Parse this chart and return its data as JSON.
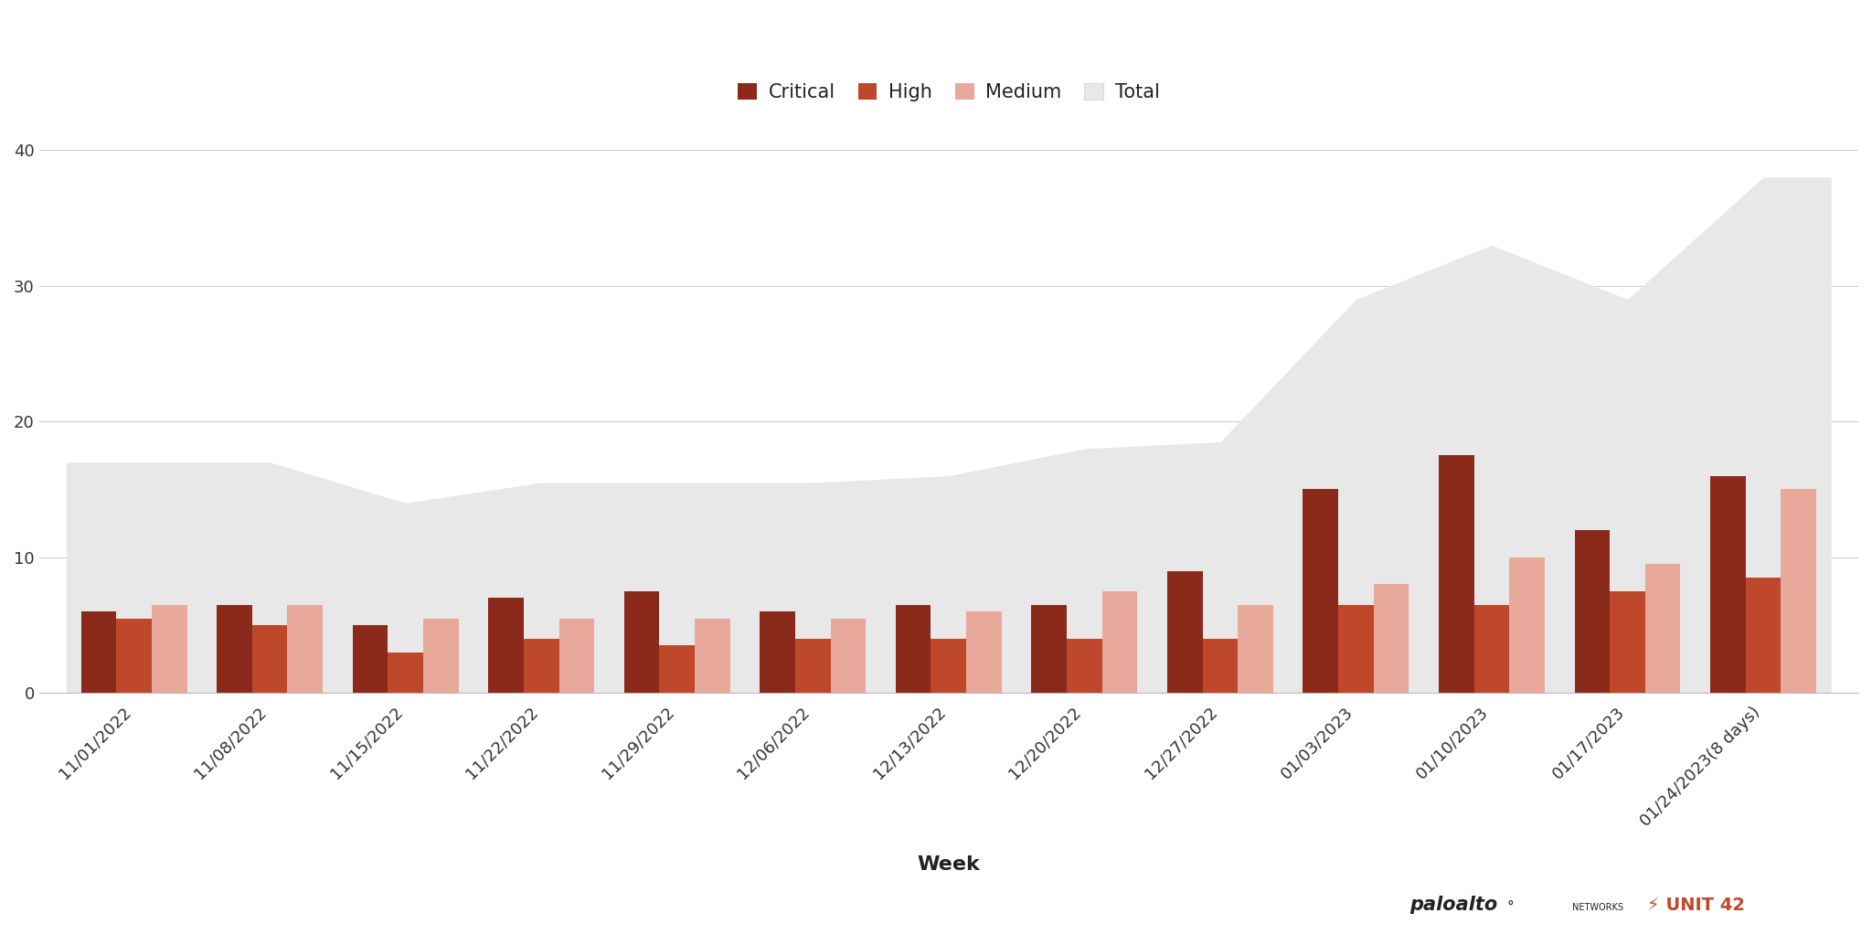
{
  "weeks": [
    "11/01/2022",
    "11/08/2022",
    "11/15/2022",
    "11/22/2022",
    "11/29/2022",
    "12/06/2022",
    "12/13/2022",
    "12/20/2022",
    "12/27/2022",
    "01/03/2023",
    "01/10/2023",
    "01/17/2023",
    "01/24/2023(8 days)"
  ],
  "critical": [
    6,
    6.5,
    5,
    7,
    7.5,
    6,
    6.5,
    6.5,
    9,
    15,
    17.5,
    12,
    16
  ],
  "high": [
    5.5,
    5,
    3,
    4,
    3.5,
    4,
    4,
    4,
    4,
    6.5,
    6.5,
    7.5,
    8.5
  ],
  "medium": [
    6.5,
    6.5,
    5.5,
    5.5,
    5.5,
    5.5,
    6,
    7.5,
    6.5,
    8,
    10,
    9.5,
    15
  ],
  "total": [
    17,
    17,
    14,
    15.5,
    15.5,
    15.5,
    16,
    18,
    18.5,
    29,
    33,
    29,
    38
  ],
  "color_critical": "#8B2A1A",
  "color_high": "#C0482A",
  "color_medium": "#E8A89A",
  "color_total": "#E8E8E8",
  "xlabel": "Week",
  "ylim": [
    0,
    42
  ],
  "yticks": [
    0,
    10,
    20,
    30,
    40
  ],
  "background_color": "#ffffff",
  "legend_labels": [
    "Critical",
    "High",
    "Medium",
    "Total"
  ]
}
